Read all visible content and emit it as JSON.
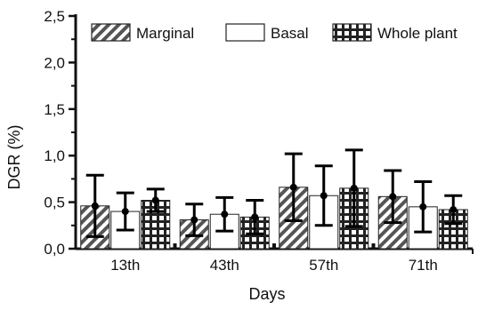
{
  "chart_data": {
    "type": "bar",
    "xlabel": "Days",
    "ylabel": "DGR (%)",
    "ylim": [
      0,
      2.5
    ],
    "yticks": [
      "0,0",
      "0,5",
      "1,0",
      "1,5",
      "2,0",
      "2,5"
    ],
    "categories": [
      "13th",
      "43th",
      "57th",
      "71th"
    ],
    "series": [
      {
        "name": "Marginal",
        "pattern": "diagonal",
        "values": [
          0.46,
          0.31,
          0.66,
          0.56
        ],
        "errors": [
          0.33,
          0.17,
          0.36,
          0.28
        ]
      },
      {
        "name": "Basal",
        "pattern": "plain",
        "values": [
          0.4,
          0.37,
          0.57,
          0.45
        ],
        "errors": [
          0.2,
          0.18,
          0.32,
          0.27
        ]
      },
      {
        "name": "Whole plant",
        "pattern": "checker",
        "values": [
          0.52,
          0.34,
          0.65,
          0.42
        ],
        "errors": [
          0.12,
          0.18,
          0.41,
          0.15
        ]
      }
    ],
    "legend": "top",
    "grid": false,
    "colors": {
      "axis": "#111111",
      "bar_fill": "#ffffff",
      "pattern": "#444444",
      "error": "#000000"
    }
  }
}
